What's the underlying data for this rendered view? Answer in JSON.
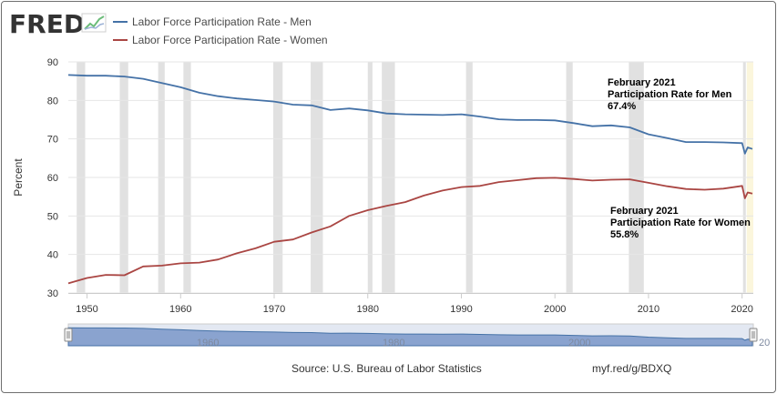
{
  "logo": {
    "text": "FRED",
    "icon": "chart-line-icon"
  },
  "colors": {
    "men": "#4572a7",
    "women": "#aa4643",
    "recession": "#e1e1e1",
    "highlight": "#fbf6dc",
    "navigator": "#8aa3cf"
  },
  "footer": {
    "source": "Source: U.S. Bureau of Labor Statistics",
    "short_url": "myf.red/g/BDXQ"
  },
  "annotations": [
    {
      "lines": [
        "February 2021",
        "Participation Rate for Men",
        "67.4%"
      ]
    },
    {
      "lines": [
        "February 2021",
        "Participation Rate for Women",
        "55.8%"
      ]
    }
  ],
  "navigator": {
    "tick_labels": [
      "1960",
      "1980",
      "2000",
      "20"
    ]
  },
  "chart_data": {
    "type": "line",
    "ylabel": "Percent",
    "ylim": [
      30,
      90
    ],
    "xlim": [
      1948,
      2021.2
    ],
    "y_ticks": [
      30,
      40,
      50,
      60,
      70,
      80,
      90
    ],
    "x_ticks": [
      1950,
      1960,
      1970,
      1980,
      1990,
      2000,
      2010,
      2020
    ],
    "grid": true,
    "legend_position": "top-left",
    "series": [
      {
        "name": "Labor Force Participation Rate - Men",
        "x": [
          1948,
          1950,
          1952,
          1954,
          1956,
          1958,
          1960,
          1962,
          1964,
          1966,
          1968,
          1970,
          1972,
          1974,
          1976,
          1978,
          1980,
          1982,
          1984,
          1986,
          1988,
          1990,
          1992,
          1994,
          1996,
          1998,
          2000,
          2002,
          2004,
          2006,
          2008,
          2010,
          2012,
          2014,
          2016,
          2018,
          2020,
          2020.3,
          2020.6,
          2021.1
        ],
        "y": [
          86.6,
          86.4,
          86.4,
          86.2,
          85.6,
          84.5,
          83.4,
          82.0,
          81.1,
          80.5,
          80.1,
          79.7,
          78.9,
          78.7,
          77.5,
          77.9,
          77.4,
          76.6,
          76.4,
          76.3,
          76.2,
          76.4,
          75.8,
          75.1,
          74.9,
          74.9,
          74.8,
          74.1,
          73.3,
          73.5,
          73.0,
          71.2,
          70.2,
          69.2,
          69.2,
          69.1,
          68.9,
          66.2,
          67.8,
          67.4
        ]
      },
      {
        "name": "Labor Force Participation Rate - Women",
        "x": [
          1948,
          1950,
          1952,
          1954,
          1956,
          1958,
          1960,
          1962,
          1964,
          1966,
          1968,
          1970,
          1972,
          1974,
          1976,
          1978,
          1980,
          1982,
          1984,
          1986,
          1988,
          1990,
          1992,
          1994,
          1996,
          1998,
          2000,
          2002,
          2004,
          2006,
          2008,
          2010,
          2012,
          2014,
          2016,
          2018,
          2020,
          2020.3,
          2020.6,
          2021.1
        ],
        "y": [
          32.5,
          33.9,
          34.7,
          34.6,
          36.9,
          37.1,
          37.7,
          37.9,
          38.7,
          40.3,
          41.6,
          43.3,
          43.9,
          45.7,
          47.3,
          50.0,
          51.5,
          52.6,
          53.6,
          55.3,
          56.6,
          57.5,
          57.8,
          58.8,
          59.3,
          59.8,
          59.9,
          59.6,
          59.2,
          59.4,
          59.5,
          58.6,
          57.7,
          57.0,
          56.8,
          57.1,
          57.8,
          54.6,
          56.1,
          55.8
        ]
      }
    ],
    "recessions": [
      [
        1948.9,
        1949.8
      ],
      [
        1953.5,
        1954.4
      ],
      [
        1957.6,
        1958.3
      ],
      [
        1960.3,
        1961.1
      ],
      [
        1969.9,
        1970.9
      ],
      [
        1973.9,
        1975.2
      ],
      [
        1980.0,
        1980.5
      ],
      [
        1981.5,
        1982.9
      ],
      [
        1990.5,
        1991.2
      ],
      [
        2001.2,
        2001.9
      ],
      [
        2007.9,
        2009.5
      ],
      [
        2020.1,
        2020.4
      ]
    ],
    "highlight_range": [
      2020.5,
      2021.2
    ]
  }
}
